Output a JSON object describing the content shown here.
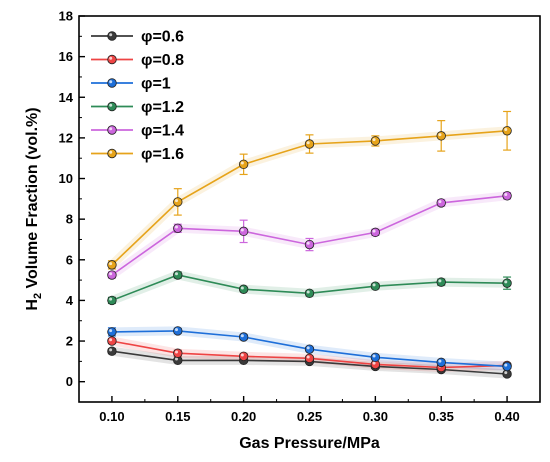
{
  "chart_data": {
    "type": "line",
    "xlabel": "Gas Pressure/MPa",
    "ylabel_main": "H",
    "ylabel_sub": "2",
    "ylabel_rest": " Volume Fraction (vol.%)",
    "x": [
      0.1,
      0.15,
      0.2,
      0.25,
      0.3,
      0.35,
      0.4
    ],
    "x_tick_labels": [
      "0.10",
      "0.15",
      "0.20",
      "0.25",
      "0.30",
      "0.35",
      "0.40"
    ],
    "xlim": [
      0.075,
      0.425
    ],
    "ylim": [
      -1,
      18
    ],
    "y_ticks": [
      0,
      2,
      4,
      6,
      8,
      10,
      12,
      14,
      16,
      18
    ],
    "y_tick_labels": [
      "0",
      "2",
      "4",
      "6",
      "8",
      "10",
      "12",
      "14",
      "16",
      "18"
    ],
    "grid": false,
    "legend_position": "top-left",
    "series": [
      {
        "name": "φ=0.6",
        "color": "#3a3a3a",
        "values": [
          1.5,
          1.05,
          1.05,
          1.0,
          0.75,
          0.6,
          0.38
        ],
        "errors": [
          0.12,
          0.1,
          0.1,
          0.1,
          0.08,
          0.08,
          0.1
        ]
      },
      {
        "name": "φ=0.8",
        "color": "#ee4444",
        "values": [
          2.0,
          1.4,
          1.25,
          1.15,
          0.85,
          0.7,
          0.8
        ],
        "errors": [
          0.12,
          0.15,
          0.12,
          0.1,
          0.1,
          0.08,
          0.1
        ]
      },
      {
        "name": "φ=1",
        "color": "#1e6fd9",
        "values": [
          2.45,
          2.5,
          2.2,
          1.6,
          1.2,
          0.95,
          0.75
        ],
        "errors": [
          0.2,
          0.12,
          0.12,
          0.1,
          0.1,
          0.1,
          0.1
        ]
      },
      {
        "name": "φ=1.2",
        "color": "#2e8b57",
        "values": [
          4.0,
          5.25,
          4.55,
          4.35,
          4.7,
          4.9,
          4.85
        ],
        "errors": [
          0.15,
          0.15,
          0.1,
          0.12,
          0.12,
          0.15,
          0.3
        ]
      },
      {
        "name": "φ=1.4",
        "color": "#cc66dd",
        "values": [
          5.25,
          7.55,
          7.4,
          6.75,
          7.35,
          8.8,
          9.15
        ],
        "errors": [
          0.15,
          0.2,
          0.55,
          0.3,
          0.15,
          0.15,
          0.15
        ]
      },
      {
        "name": "φ=1.6",
        "color": "#e6a31a",
        "values": [
          5.75,
          8.85,
          10.7,
          11.7,
          11.85,
          12.1,
          12.35
        ],
        "errors": [
          0.2,
          0.65,
          0.5,
          0.45,
          0.25,
          0.75,
          0.95
        ]
      }
    ]
  }
}
